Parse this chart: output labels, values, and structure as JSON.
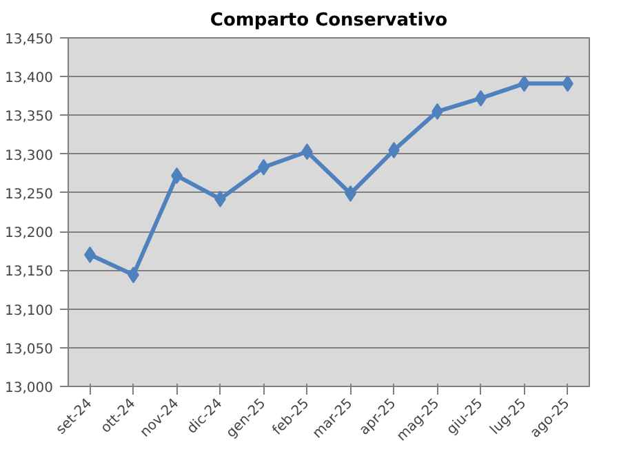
{
  "chart_data": {
    "type": "line",
    "title": "Comparto Conservativo",
    "categories": [
      "set-24",
      "ott-24",
      "nov-24",
      "dic-24",
      "gen-25",
      "feb-25",
      "mar-25",
      "apr-25",
      "mag-25",
      "giu-25",
      "lug-25",
      "ago-25"
    ],
    "series": [
      {
        "color": "#4f81bd",
        "values": [
          13170,
          13144,
          13272,
          13242,
          13283,
          13303,
          13249,
          13305,
          13355,
          13372,
          13391,
          13391
        ]
      }
    ],
    "ylim": [
      13000,
      13450
    ],
    "yticks": [
      {
        "value": 13000,
        "label": "13,000"
      },
      {
        "value": 13050,
        "label": "13,050"
      },
      {
        "value": 13100,
        "label": "13,100"
      },
      {
        "value": 13150,
        "label": "13,150"
      },
      {
        "value": 13200,
        "label": "13,200"
      },
      {
        "value": 13250,
        "label": "13,250"
      },
      {
        "value": 13300,
        "label": "13,300"
      },
      {
        "value": 13350,
        "label": "13,350"
      },
      {
        "value": 13400,
        "label": "13,400"
      },
      {
        "value": 13450,
        "label": "13,450"
      }
    ],
    "grid": "y",
    "marker": "diamond",
    "line_style": "solid"
  }
}
